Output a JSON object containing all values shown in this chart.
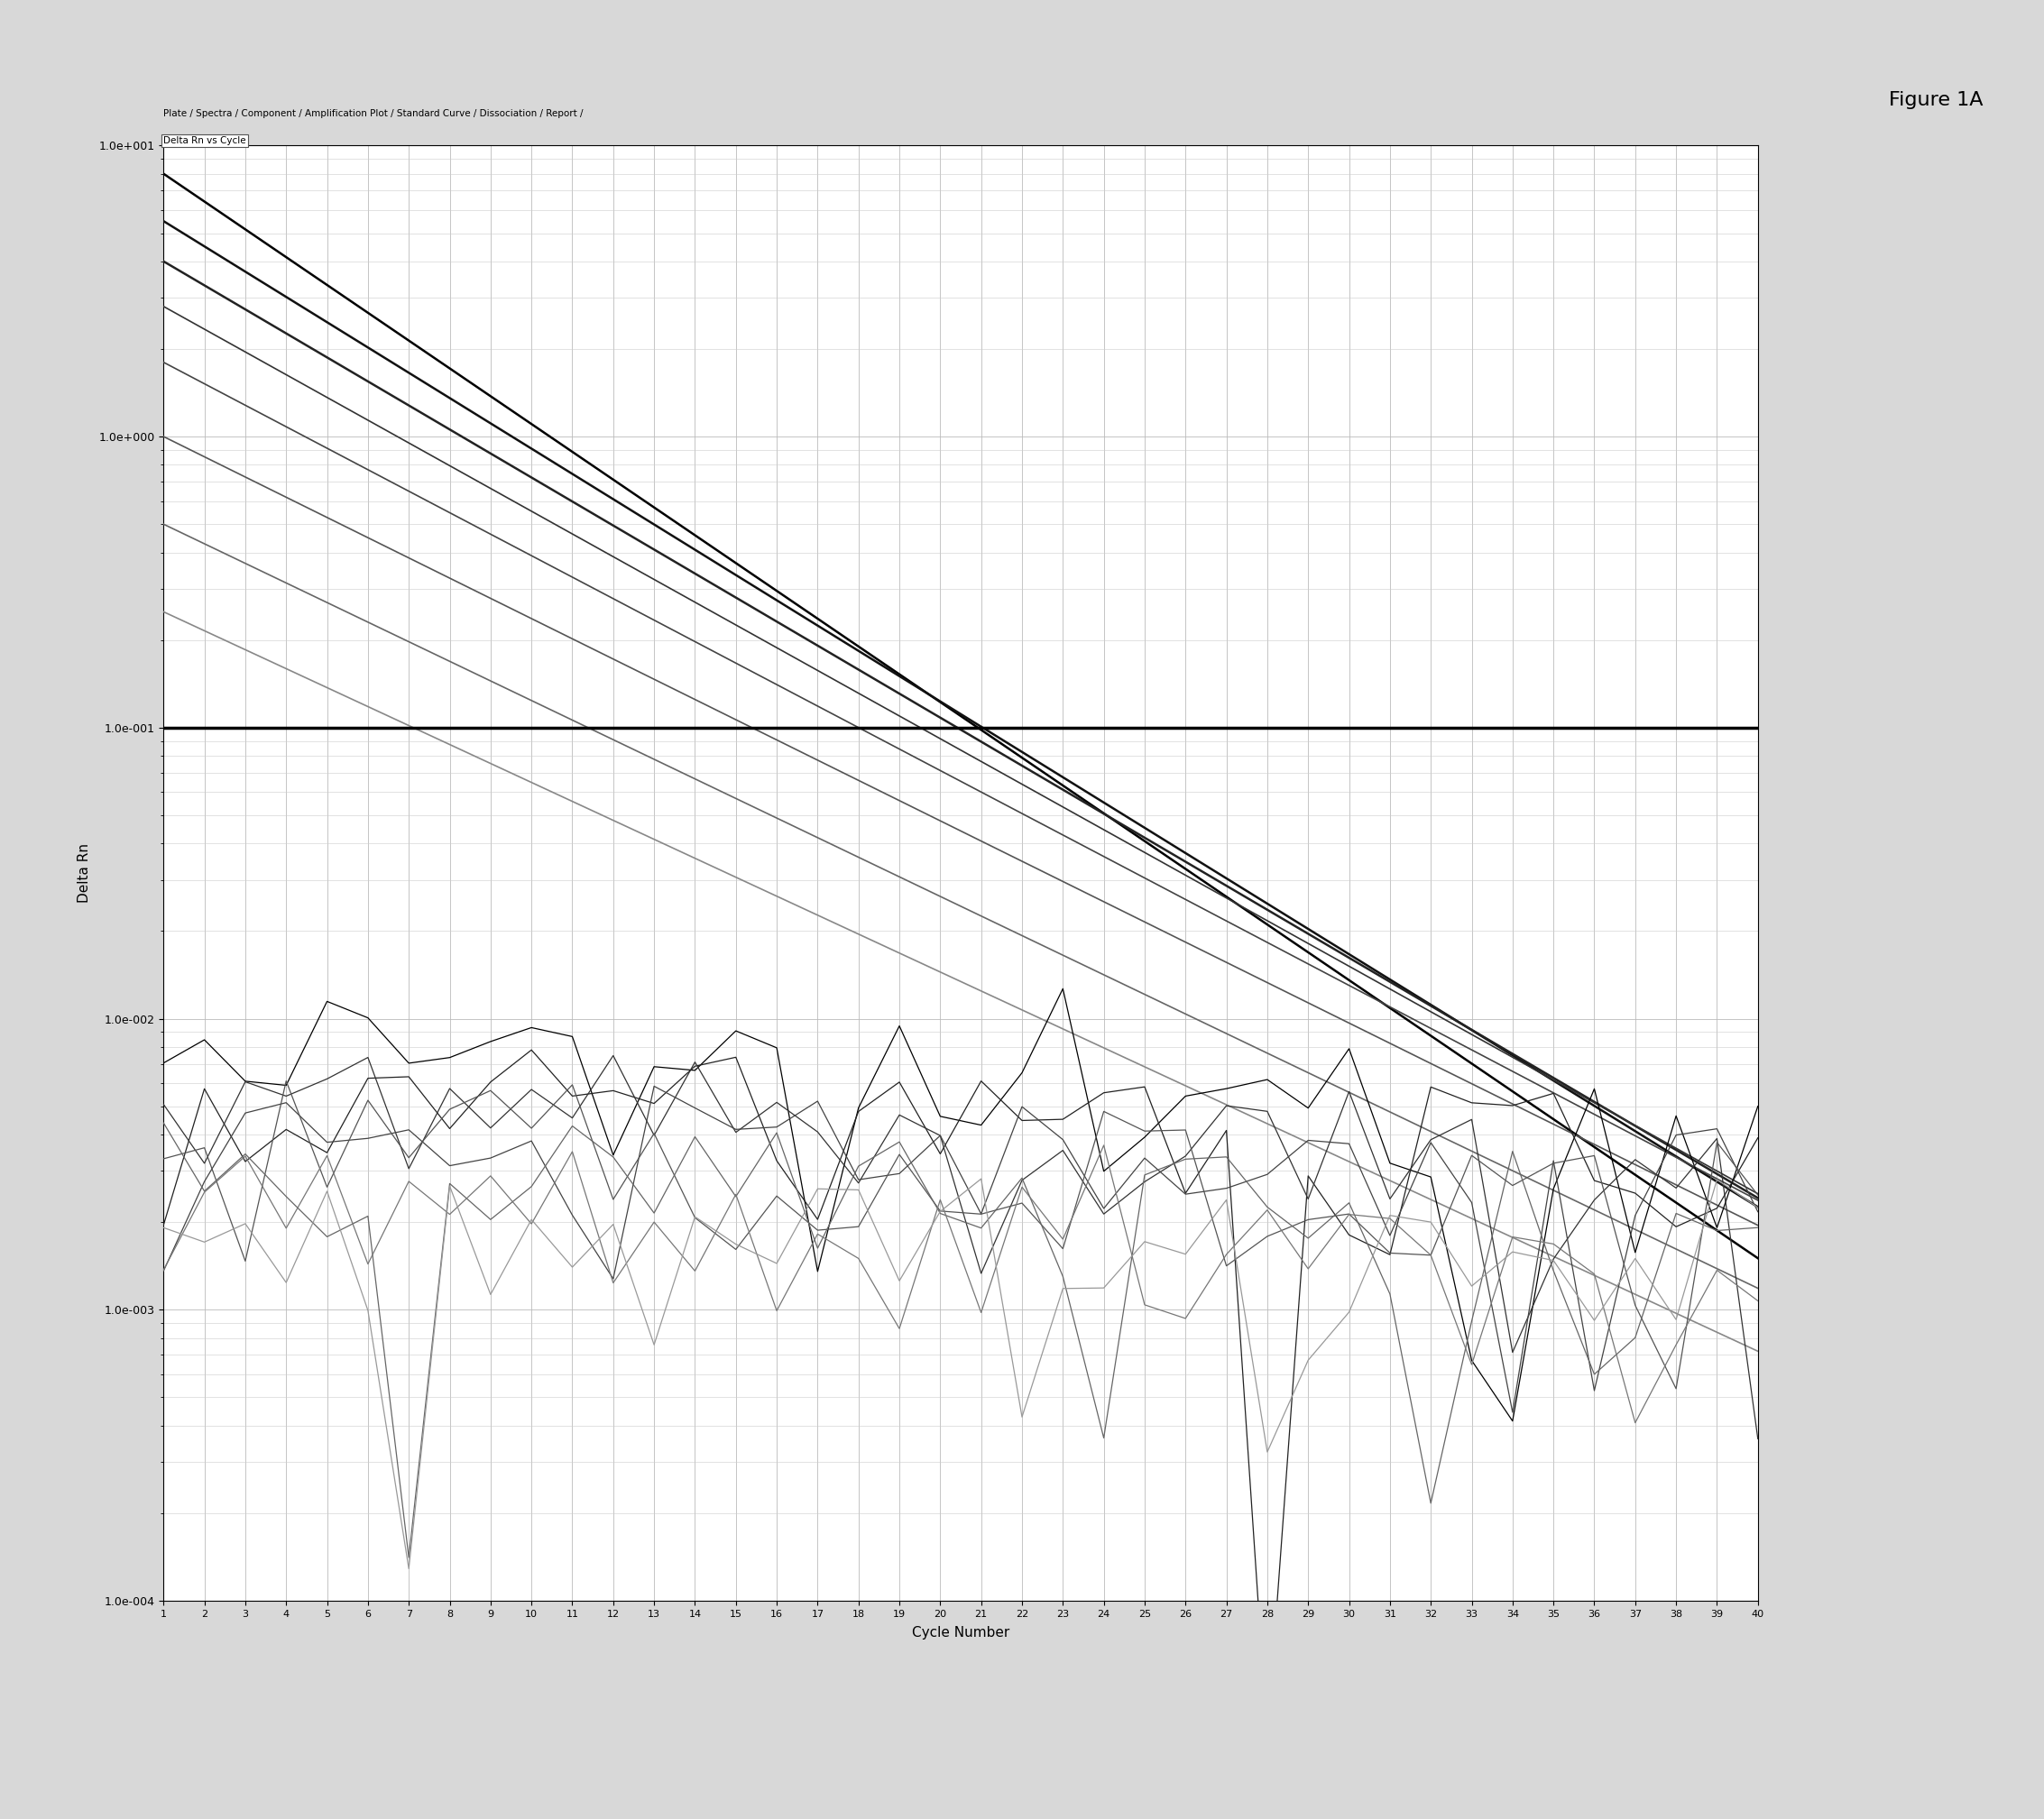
{
  "title": "Figure 1A",
  "tab_text": "Plate / Spectra / Component / Amplification Plot / Standard Curve / Dissociation / Report /",
  "active_tab": "Delta Rn vs Cycle",
  "xlabel": "Cycle Number",
  "ylabel": "Delta Rn",
  "xlim": [
    1,
    40
  ],
  "y_ticks": [
    0.0001,
    0.001,
    0.01,
    0.1,
    1.0,
    10.0
  ],
  "y_tick_labels": [
    "1.0e-004",
    "1.0e-003",
    "1.0e-002",
    "1.0e-001",
    "1.0e+000",
    "1.0e+001"
  ],
  "x_ticks": [
    1,
    2,
    3,
    4,
    5,
    6,
    7,
    8,
    9,
    10,
    11,
    12,
    13,
    14,
    15,
    16,
    17,
    18,
    19,
    20,
    21,
    22,
    23,
    24,
    25,
    26,
    27,
    28,
    29,
    30,
    31,
    32,
    33,
    34,
    35,
    36,
    37,
    38,
    39,
    40
  ],
  "threshold_line_y": 0.1,
  "background_color": "#ffffff",
  "grid_color": "#bbbbbb",
  "fig_background": "#d8d8d8",
  "smooth_starts": [
    8.0,
    5.5,
    4.0,
    2.8,
    1.8,
    1.0,
    0.5,
    0.25
  ],
  "smooth_decays": [
    0.22,
    0.2,
    0.19,
    0.18,
    0.17,
    0.16,
    0.155,
    0.15
  ],
  "noisy_starts": [
    0.006,
    0.005,
    0.004,
    0.0035,
    0.003,
    0.0025,
    0.002,
    0.0015
  ],
  "noisy_baselines": [
    0.0015,
    0.0012,
    0.001,
    0.0009,
    0.0008,
    0.0007,
    0.0006,
    0.0005
  ],
  "dark_colors": [
    "#000000",
    "#111111",
    "#222222",
    "#333333",
    "#444444",
    "#555555",
    "#666666",
    "#888888"
  ],
  "noisy_colors": [
    "#000000",
    "#222222",
    "#333333",
    "#444444",
    "#555555",
    "#666666",
    "#777777",
    "#999999"
  ]
}
